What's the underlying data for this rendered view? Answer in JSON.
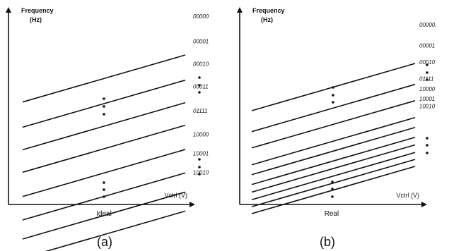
{
  "chart_data": [
    {
      "type": "line",
      "panel_label": "(a)",
      "x_title": "Ideal",
      "xlabel": "Vctrl (V)",
      "ylabel_line1": "Frequency",
      "ylabel_line2": "(Hz)",
      "y_offsets": [
        0.18,
        0.325,
        0.455,
        0.585,
        0.725,
        0.86,
        0.97,
        1.08
      ],
      "series": [
        {
          "name": "00000"
        },
        {
          "name": "00001"
        },
        {
          "name": "00010"
        },
        {
          "name": "00011"
        },
        {
          "name": "01111"
        },
        {
          "name": "10000"
        },
        {
          "name": "10001"
        },
        {
          "name": "10010"
        }
      ]
    },
    {
      "type": "line",
      "panel_label": "(b)",
      "x_title": "Real",
      "xlabel": "Vctrl (V)",
      "ylabel_line1": "Frequency",
      "ylabel_line2": "(Hz)",
      "y_offsets": [
        0.18,
        0.36,
        0.5,
        0.645,
        0.73,
        0.815,
        0.88,
        0.945,
        1.005,
        1.065
      ],
      "series": [
        {
          "name": "00000,"
        },
        {
          "name": "00001"
        },
        {
          "name": "00010"
        },
        {
          "name": "01111"
        },
        {
          "name": "10000"
        },
        {
          "name": "10001"
        },
        {
          "name": "10010"
        },
        {
          "name": ""
        },
        {
          "name": ""
        },
        {
          "name": ""
        }
      ]
    }
  ]
}
